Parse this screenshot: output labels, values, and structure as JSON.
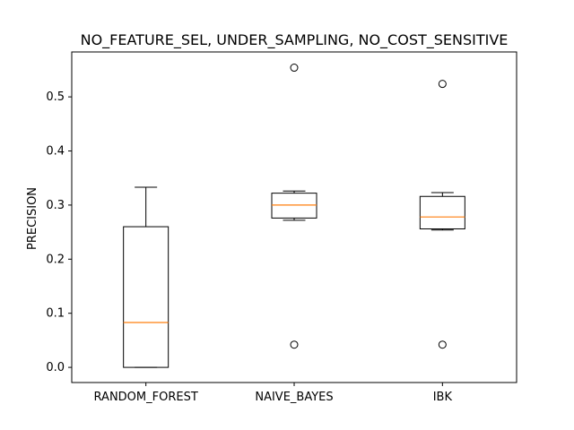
{
  "chart_data": {
    "type": "box",
    "title": "NO_FEATURE_SEL, UNDER_SAMPLING, NO_COST_SENSITIVE",
    "xlabel": "",
    "ylabel": "PRECISION",
    "ylim": [
      -0.028,
      0.583
    ],
    "yticks": [
      "0.0",
      "0.1",
      "0.2",
      "0.3",
      "0.4",
      "0.5"
    ],
    "grid": false,
    "box_color": "#000000",
    "median_color": "#ff7f0e",
    "boxes": [
      {
        "label": "RANDOM_FOREST",
        "whisker_low": 0.0,
        "q1": 0.0,
        "median": 0.083,
        "q3": 0.26,
        "whisker_high": 0.333,
        "outliers": []
      },
      {
        "label": "NAIVE_BAYES",
        "whisker_low": 0.272,
        "q1": 0.276,
        "median": 0.3,
        "q3": 0.322,
        "whisker_high": 0.326,
        "outliers": [
          0.042,
          0.554
        ]
      },
      {
        "label": "IBK",
        "whisker_low": 0.254,
        "q1": 0.256,
        "median": 0.278,
        "q3": 0.316,
        "whisker_high": 0.323,
        "outliers": [
          0.042,
          0.524
        ]
      }
    ]
  }
}
